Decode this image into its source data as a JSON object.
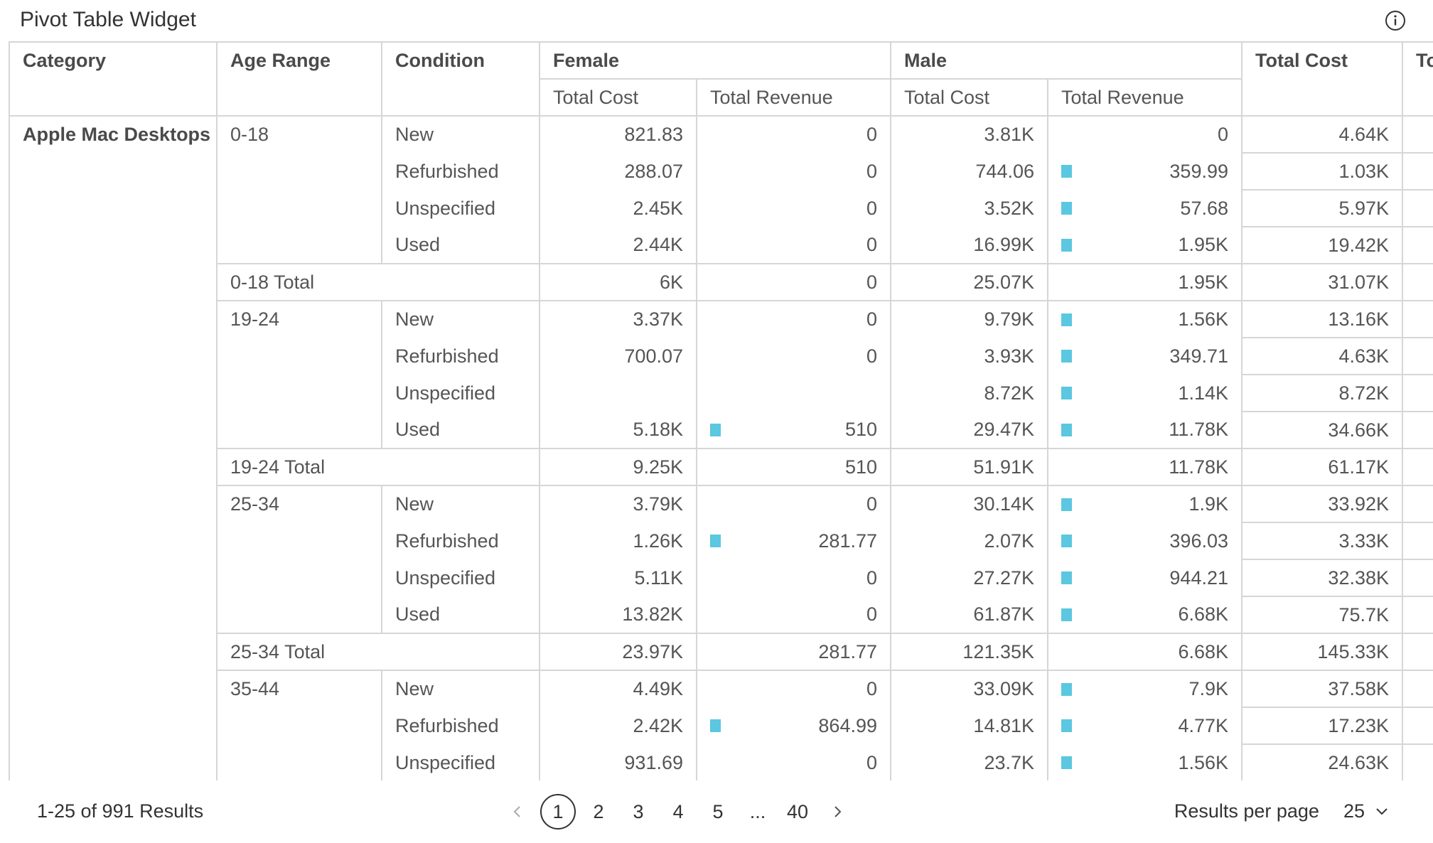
{
  "widget": {
    "title": "Pivot Table Widget"
  },
  "icons": {
    "info": "info-circle-icon",
    "prev": "chevron-left-icon",
    "next": "chevron-right-icon",
    "dropdown": "chevron-down-icon"
  },
  "colors": {
    "bar": "#5bc7e0",
    "border": "#d6d6d6"
  },
  "columns": {
    "category": "Category",
    "age_range": "Age Range",
    "condition": "Condition",
    "female": "Female",
    "male": "Male",
    "total_cost": "Total Cost",
    "total_revenue_cut": "To",
    "sub": {
      "cost": "Total Cost",
      "revenue": "Total Revenue"
    }
  },
  "category": "Apple Mac Desktops",
  "groups": [
    {
      "age": "0-18",
      "rows": [
        {
          "cond": "New",
          "f_cost": "821.83",
          "f_rev": "0",
          "f_bar": false,
          "m_cost": "3.81K",
          "m_rev": "0",
          "m_bar": false,
          "t_cost": "4.64K"
        },
        {
          "cond": "Refurbished",
          "f_cost": "288.07",
          "f_rev": "0",
          "f_bar": false,
          "m_cost": "744.06",
          "m_rev": "359.99",
          "m_bar": true,
          "t_cost": "1.03K"
        },
        {
          "cond": "Unspecified",
          "f_cost": "2.45K",
          "f_rev": "0",
          "f_bar": false,
          "m_cost": "3.52K",
          "m_rev": "57.68",
          "m_bar": true,
          "t_cost": "5.97K"
        },
        {
          "cond": "Used",
          "f_cost": "2.44K",
          "f_rev": "0",
          "f_bar": false,
          "m_cost": "16.99K",
          "m_rev": "1.95K",
          "m_bar": true,
          "t_cost": "19.42K"
        }
      ],
      "total": {
        "label": "0-18 Total",
        "f_cost": "6K",
        "f_rev": "0",
        "m_cost": "25.07K",
        "m_rev": "1.95K",
        "t_cost": "31.07K"
      }
    },
    {
      "age": "19-24",
      "rows": [
        {
          "cond": "New",
          "f_cost": "3.37K",
          "f_rev": "0",
          "f_bar": false,
          "m_cost": "9.79K",
          "m_rev": "1.56K",
          "m_bar": true,
          "t_cost": "13.16K"
        },
        {
          "cond": "Refurbished",
          "f_cost": "700.07",
          "f_rev": "0",
          "f_bar": false,
          "m_cost": "3.93K",
          "m_rev": "349.71",
          "m_bar": true,
          "t_cost": "4.63K"
        },
        {
          "cond": "Unspecified",
          "f_cost": "",
          "f_rev": "",
          "f_bar": false,
          "m_cost": "8.72K",
          "m_rev": "1.14K",
          "m_bar": true,
          "t_cost": "8.72K"
        },
        {
          "cond": "Used",
          "f_cost": "5.18K",
          "f_rev": "510",
          "f_bar": true,
          "m_cost": "29.47K",
          "m_rev": "11.78K",
          "m_bar": true,
          "t_cost": "34.66K"
        }
      ],
      "total": {
        "label": "19-24 Total",
        "f_cost": "9.25K",
        "f_rev": "510",
        "m_cost": "51.91K",
        "m_rev": "11.78K",
        "t_cost": "61.17K"
      }
    },
    {
      "age": "25-34",
      "rows": [
        {
          "cond": "New",
          "f_cost": "3.79K",
          "f_rev": "0",
          "f_bar": false,
          "m_cost": "30.14K",
          "m_rev": "1.9K",
          "m_bar": true,
          "t_cost": "33.92K"
        },
        {
          "cond": "Refurbished",
          "f_cost": "1.26K",
          "f_rev": "281.77",
          "f_bar": true,
          "m_cost": "2.07K",
          "m_rev": "396.03",
          "m_bar": true,
          "t_cost": "3.33K"
        },
        {
          "cond": "Unspecified",
          "f_cost": "5.11K",
          "f_rev": "0",
          "f_bar": false,
          "m_cost": "27.27K",
          "m_rev": "944.21",
          "m_bar": true,
          "t_cost": "32.38K"
        },
        {
          "cond": "Used",
          "f_cost": "13.82K",
          "f_rev": "0",
          "f_bar": false,
          "m_cost": "61.87K",
          "m_rev": "6.68K",
          "m_bar": true,
          "t_cost": "75.7K"
        }
      ],
      "total": {
        "label": "25-34 Total",
        "f_cost": "23.97K",
        "f_rev": "281.77",
        "m_cost": "121.35K",
        "m_rev": "6.68K",
        "t_cost": "145.33K"
      }
    },
    {
      "age": "35-44",
      "rows": [
        {
          "cond": "New",
          "f_cost": "4.49K",
          "f_rev": "0",
          "f_bar": false,
          "m_cost": "33.09K",
          "m_rev": "7.9K",
          "m_bar": true,
          "t_cost": "37.58K"
        },
        {
          "cond": "Refurbished",
          "f_cost": "2.42K",
          "f_rev": "864.99",
          "f_bar": true,
          "m_cost": "14.81K",
          "m_rev": "4.77K",
          "m_bar": true,
          "t_cost": "17.23K"
        },
        {
          "cond": "Unspecified",
          "f_cost": "931.69",
          "f_rev": "0",
          "f_bar": false,
          "m_cost": "23.7K",
          "m_rev": "1.56K",
          "m_bar": true,
          "t_cost": "24.63K"
        }
      ],
      "total": null
    }
  ],
  "footer": {
    "results": "1-25 of 991 Results",
    "pages": [
      "1",
      "2",
      "3",
      "4",
      "5",
      "...",
      "40"
    ],
    "current_page": "1",
    "per_page_label": "Results per page",
    "per_page_value": "25"
  }
}
